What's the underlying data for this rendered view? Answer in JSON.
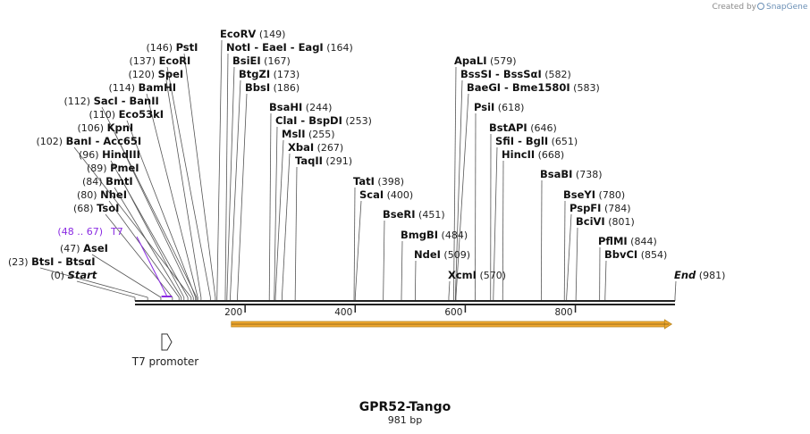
{
  "plasmid": {
    "name": "GPR52-Tango",
    "length_label": "981 bp",
    "length": 981
  },
  "branding": {
    "created_by": "Created by",
    "app": "SnapGene"
  },
  "colors": {
    "backbone": "#222222",
    "feature": "#8a2be2",
    "orf": "#f0a830",
    "orf_border": "#b9861e",
    "leader": "#555555"
  },
  "ruler": {
    "ticks": [
      200,
      400,
      600,
      800
    ]
  },
  "features": {
    "t7_feature": {
      "range_label": "(48 .. 67)",
      "name": "T7",
      "start": 48,
      "end": 67
    },
    "t7_promoter": {
      "label": "T7 promoter"
    },
    "orf": {
      "start": 175,
      "end": 975
    }
  },
  "sites": [
    {
      "pos": 0,
      "pos_label": "(0)",
      "names": [
        "Start"
      ],
      "italic": true
    },
    {
      "pos": 23,
      "pos_label": "(23)",
      "names": [
        "BtsI",
        "BtsαI"
      ]
    },
    {
      "pos": 47,
      "pos_label": "(47)",
      "names": [
        "AseI"
      ]
    },
    {
      "pos": 68,
      "pos_label": "(68)",
      "names": [
        "TsoI"
      ]
    },
    {
      "pos": 80,
      "pos_label": "(80)",
      "names": [
        "NheI"
      ]
    },
    {
      "pos": 84,
      "pos_label": "(84)",
      "names": [
        "BmtI"
      ]
    },
    {
      "pos": 89,
      "pos_label": "(89)",
      "names": [
        "PmeI"
      ]
    },
    {
      "pos": 96,
      "pos_label": "(96)",
      "names": [
        "HindIII"
      ]
    },
    {
      "pos": 102,
      "pos_label": "(102)",
      "names": [
        "BanI",
        "Acc65I"
      ]
    },
    {
      "pos": 106,
      "pos_label": "(106)",
      "names": [
        "KpnI"
      ]
    },
    {
      "pos": 110,
      "pos_label": "(110)",
      "names": [
        "Eco53kI"
      ]
    },
    {
      "pos": 112,
      "pos_label": "(112)",
      "names": [
        "SacI",
        "BanII"
      ]
    },
    {
      "pos": 114,
      "pos_label": "(114)",
      "names": [
        "BamHI"
      ]
    },
    {
      "pos": 120,
      "pos_label": "(120)",
      "names": [
        "SpeI"
      ]
    },
    {
      "pos": 137,
      "pos_label": "(137)",
      "names": [
        "EcoRI"
      ]
    },
    {
      "pos": 146,
      "pos_label": "(146)",
      "names": [
        "PstI"
      ]
    },
    {
      "pos": 149,
      "pos_label": "(149)",
      "names": [
        "EcoRV"
      ]
    },
    {
      "pos": 164,
      "pos_label": "(164)",
      "names": [
        "NotI",
        "EaeI",
        "EagI"
      ]
    },
    {
      "pos": 167,
      "pos_label": "(167)",
      "names": [
        "BsiEI"
      ]
    },
    {
      "pos": 173,
      "pos_label": "(173)",
      "names": [
        "BtgZI"
      ]
    },
    {
      "pos": 186,
      "pos_label": "(186)",
      "names": [
        "BbsI"
      ]
    },
    {
      "pos": 244,
      "pos_label": "(244)",
      "names": [
        "BsaHI"
      ]
    },
    {
      "pos": 253,
      "pos_label": "(253)",
      "names": [
        "ClaI",
        "BspDI"
      ]
    },
    {
      "pos": 255,
      "pos_label": "(255)",
      "names": [
        "MslI"
      ]
    },
    {
      "pos": 267,
      "pos_label": "(267)",
      "names": [
        "XbaI"
      ]
    },
    {
      "pos": 291,
      "pos_label": "(291)",
      "names": [
        "TaqII"
      ]
    },
    {
      "pos": 398,
      "pos_label": "(398)",
      "names": [
        "TatI"
      ]
    },
    {
      "pos": 400,
      "pos_label": "(400)",
      "names": [
        "ScaI"
      ]
    },
    {
      "pos": 451,
      "pos_label": "(451)",
      "names": [
        "BseRI"
      ]
    },
    {
      "pos": 484,
      "pos_label": "(484)",
      "names": [
        "BmgBI"
      ]
    },
    {
      "pos": 509,
      "pos_label": "(509)",
      "names": [
        "NdeI"
      ]
    },
    {
      "pos": 570,
      "pos_label": "(570)",
      "names": [
        "XcmI"
      ]
    },
    {
      "pos": 579,
      "pos_label": "(579)",
      "names": [
        "ApaLI"
      ]
    },
    {
      "pos": 582,
      "pos_label": "(582)",
      "names": [
        "BssSI",
        "BssSαI"
      ]
    },
    {
      "pos": 583,
      "pos_label": "(583)",
      "names": [
        "BaeGI",
        "Bme1580I"
      ]
    },
    {
      "pos": 618,
      "pos_label": "(618)",
      "names": [
        "PsiI"
      ]
    },
    {
      "pos": 646,
      "pos_label": "(646)",
      "names": [
        "BstAPI"
      ]
    },
    {
      "pos": 651,
      "pos_label": "(651)",
      "names": [
        "SfiI",
        "BglI"
      ]
    },
    {
      "pos": 668,
      "pos_label": "(668)",
      "names": [
        "HincII"
      ]
    },
    {
      "pos": 738,
      "pos_label": "(738)",
      "names": [
        "BsaBI"
      ]
    },
    {
      "pos": 780,
      "pos_label": "(780)",
      "names": [
        "BseYI"
      ]
    },
    {
      "pos": 784,
      "pos_label": "(784)",
      "names": [
        "PspFI"
      ]
    },
    {
      "pos": 801,
      "pos_label": "(801)",
      "names": [
        "BciVI"
      ]
    },
    {
      "pos": 844,
      "pos_label": "(844)",
      "names": [
        "PflMI"
      ]
    },
    {
      "pos": 854,
      "pos_label": "(854)",
      "names": [
        "BbvCI"
      ]
    },
    {
      "pos": 981,
      "pos_label": "(981)",
      "names": [
        "End"
      ],
      "italic": true
    }
  ]
}
